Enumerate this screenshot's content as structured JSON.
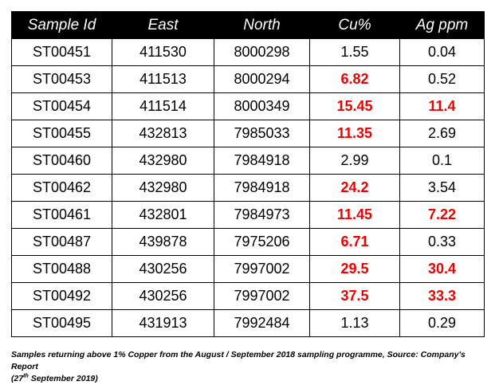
{
  "table": {
    "headers": [
      "Sample Id",
      "East",
      "North",
      "Cu%",
      "Ag ppm"
    ],
    "rows": [
      {
        "sample_id": "ST00451",
        "east": "411530",
        "north": "8000298",
        "cu": "1.55",
        "cu_high": false,
        "ag": "0.04",
        "ag_high": false
      },
      {
        "sample_id": "ST00453",
        "east": "411513",
        "north": "8000294",
        "cu": "6.82",
        "cu_high": true,
        "ag": "0.52",
        "ag_high": false
      },
      {
        "sample_id": "ST00454",
        "east": "411514",
        "north": "8000349",
        "cu": "15.45",
        "cu_high": true,
        "ag": "11.4",
        "ag_high": true
      },
      {
        "sample_id": "ST00455",
        "east": "432813",
        "north": "7985033",
        "cu": "11.35",
        "cu_high": true,
        "ag": "2.69",
        "ag_high": false
      },
      {
        "sample_id": "ST00460",
        "east": "432980",
        "north": "7984918",
        "cu": "2.99",
        "cu_high": false,
        "ag": "0.1",
        "ag_high": false
      },
      {
        "sample_id": "ST00462",
        "east": "432980",
        "north": "7984918",
        "cu": "24.2",
        "cu_high": true,
        "ag": "3.54",
        "ag_high": false
      },
      {
        "sample_id": "ST00461",
        "east": "432801",
        "north": "7984973",
        "cu": "11.45",
        "cu_high": true,
        "ag": "7.22",
        "ag_high": true
      },
      {
        "sample_id": "ST00487",
        "east": "439878",
        "north": "7975206",
        "cu": "6.71",
        "cu_high": true,
        "ag": "0.33",
        "ag_high": false
      },
      {
        "sample_id": "ST00488",
        "east": "430256",
        "north": "7997002",
        "cu": "29.5",
        "cu_high": true,
        "ag": "30.4",
        "ag_high": true
      },
      {
        "sample_id": "ST00492",
        "east": "430256",
        "north": "7997002",
        "cu": "37.5",
        "cu_high": true,
        "ag": "33.3",
        "ag_high": true
      },
      {
        "sample_id": "ST00495",
        "east": "431913",
        "north": "7992484",
        "cu": "1.13",
        "cu_high": false,
        "ag": "0.29",
        "ag_high": false
      }
    ]
  },
  "caption": {
    "line1": "Samples returning above 1% Copper from the August / September 2018 sampling programme, Source: Company's Report",
    "line2_pre": "(27",
    "line2_sup": "th",
    "line2_post": " September 2019)"
  },
  "colors": {
    "header_bg": "#000000",
    "header_text": "#ffffff",
    "highlight": "#ee0000"
  }
}
